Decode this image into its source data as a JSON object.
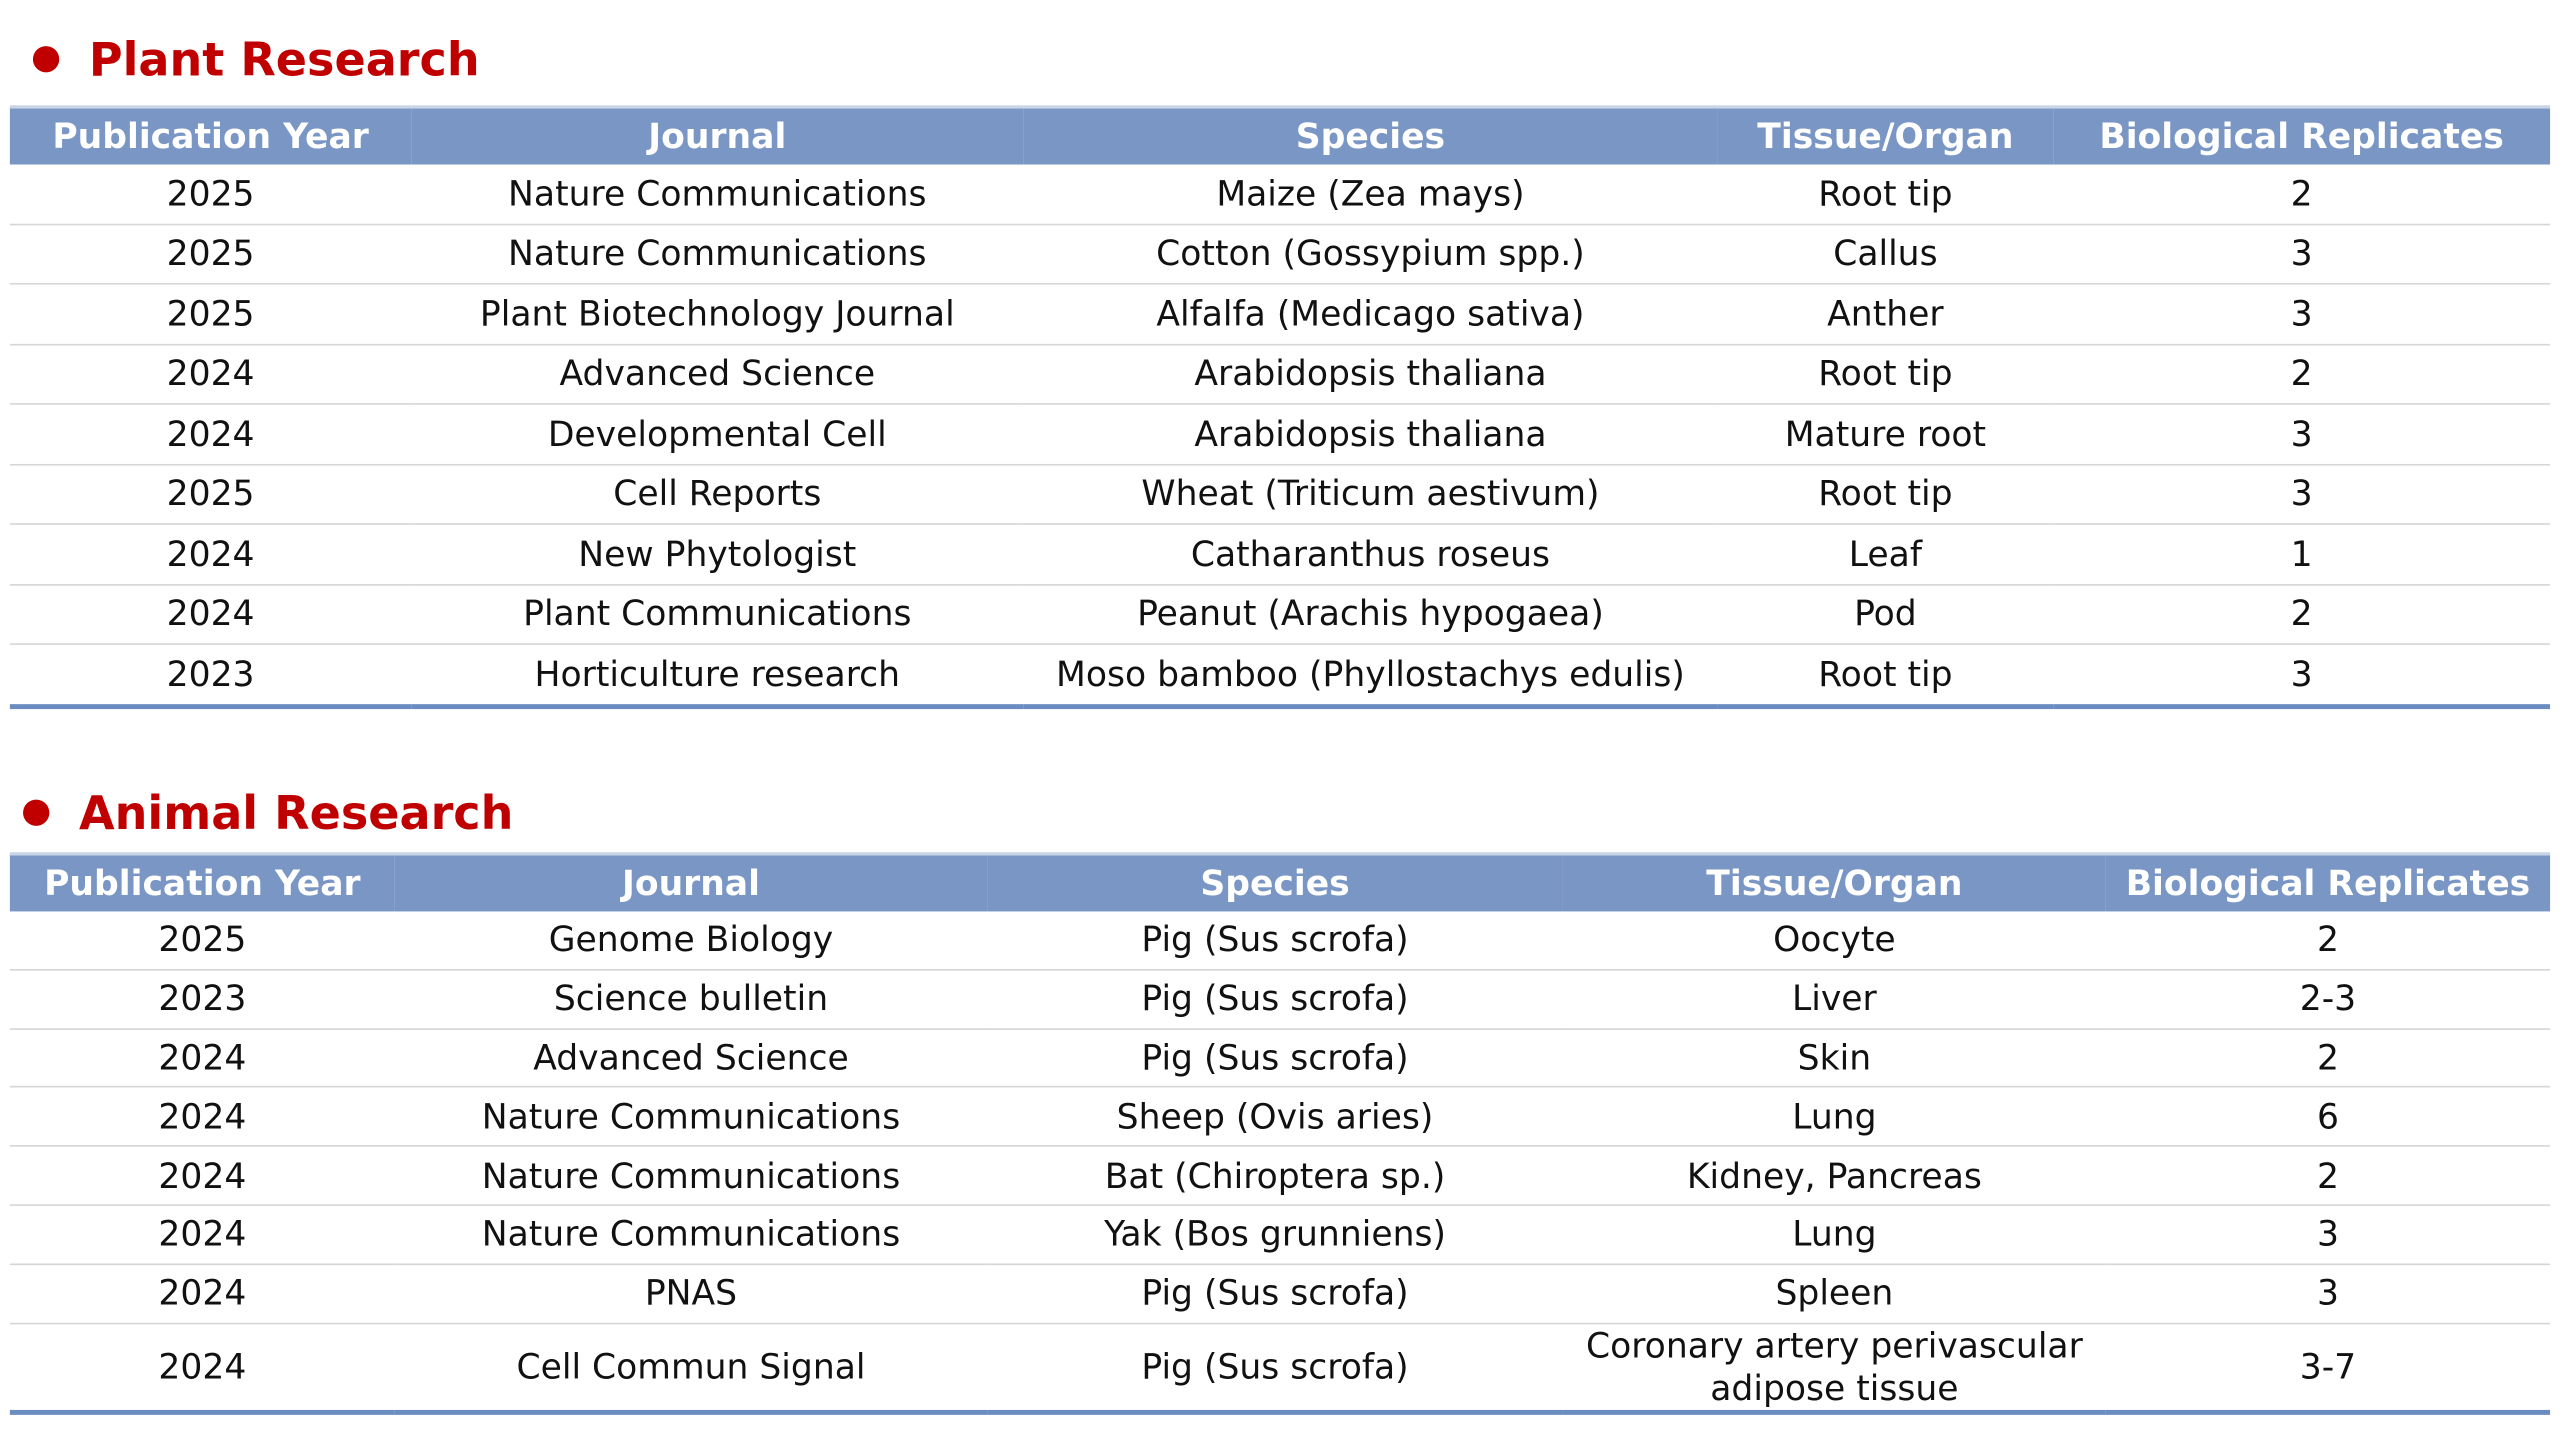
{
  "plant": {
    "title": "Plant Research",
    "headers": [
      "Publication Year",
      "Journal",
      "Species",
      "Tissue/Organ",
      "Biological Replicates"
    ],
    "rows": [
      [
        "2025",
        "Nature Communications",
        "Maize (Zea mays)",
        "Root tip",
        "2"
      ],
      [
        "2025",
        "Nature Communications",
        "Cotton (Gossypium spp.)",
        "Callus",
        "3"
      ],
      [
        "2025",
        "Plant Biotechnology Journal",
        "Alfalfa (Medicago sativa)",
        "Anther",
        "3"
      ],
      [
        "2024",
        "Advanced Science",
        "Arabidopsis thaliana",
        "Root tip",
        "2"
      ],
      [
        "2024",
        "Developmental Cell",
        "Arabidopsis thaliana",
        "Mature root",
        "3"
      ],
      [
        "2025",
        "Cell Reports",
        "Wheat (Triticum aestivum)",
        "Root tip",
        "3"
      ],
      [
        "2024",
        "New Phytologist",
        "Catharanthus roseus",
        "Leaf",
        "1"
      ],
      [
        "2024",
        "Plant Communications",
        "Peanut (Arachis hypogaea)",
        "Pod",
        "2"
      ],
      [
        "2023",
        "Horticulture research",
        "Moso bamboo (Phyllostachys edulis)",
        "Root tip",
        "3"
      ]
    ]
  },
  "animal": {
    "title": "Animal Research",
    "headers": [
      "Publication Year",
      "Journal",
      "Species",
      "Tissue/Organ",
      "Biological Replicates"
    ],
    "rows": [
      [
        "2025",
        "Genome Biology",
        "Pig (Sus scrofa)",
        "Oocyte",
        "2"
      ],
      [
        "2023",
        "Science bulletin",
        "Pig (Sus scrofa)",
        "Liver",
        "2-3"
      ],
      [
        "2024",
        "Advanced Science",
        "Pig (Sus scrofa)",
        "Skin",
        "2"
      ],
      [
        "2024",
        "Nature Communications",
        "Sheep (Ovis aries)",
        "Lung",
        "6"
      ],
      [
        "2024",
        "Nature Communications",
        "Bat (Chiroptera sp.)",
        "Kidney, Pancreas",
        "2"
      ],
      [
        "2024",
        "Nature Communications",
        "Yak (Bos grunniens)",
        "Lung",
        "3"
      ],
      [
        "2024",
        "PNAS",
        "Pig (Sus scrofa)",
        "Spleen",
        "3"
      ],
      [
        "2024",
        "Cell Commun Signal",
        "Pig (Sus scrofa)",
        "Coronary artery perivascular adipose tissue",
        "3-7"
      ]
    ]
  }
}
